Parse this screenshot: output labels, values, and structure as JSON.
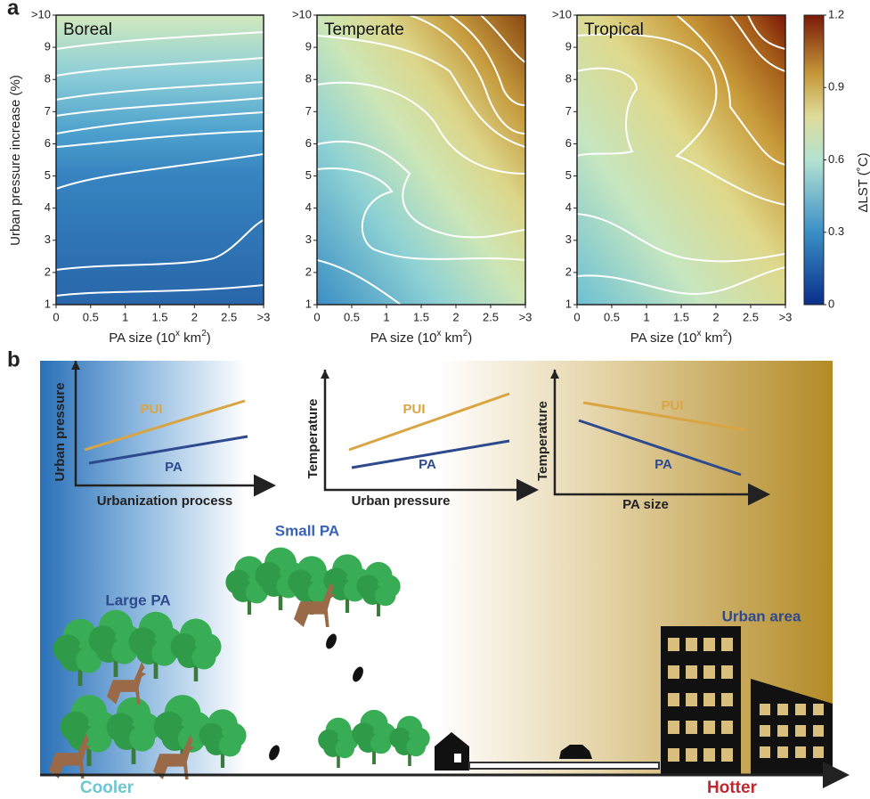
{
  "panel_a": {
    "label": "a",
    "y_label": "Urban pressure increase (%)",
    "x_label": {
      "start": "PA size (10",
      "sup1": "x",
      "mid": " km",
      "sup2": "2",
      "end": ")"
    },
    "yticks": [
      ">10",
      "9",
      "8",
      "7",
      "6",
      "5",
      "4",
      "3",
      "2",
      "1"
    ],
    "xticks": [
      "0",
      "0.5",
      "1",
      "1.5",
      "2",
      "2.5",
      ">3"
    ],
    "panels": [
      {
        "title": "Boreal"
      },
      {
        "title": "Temperate"
      },
      {
        "title": "Tropical"
      }
    ],
    "colorbar": {
      "label": "ΔLST (˚C)",
      "ticks": [
        "1.2",
        "0.9",
        "0.6",
        "0.3",
        "0"
      ]
    }
  },
  "panel_b": {
    "label": "b",
    "charts": [
      {
        "y_label": "Urban pressure",
        "x_label": "Urbanization process",
        "line1": "PUI",
        "line2": "PA"
      },
      {
        "y_label": "Temperature",
        "x_label": "Urban pressure",
        "line1": "PUI",
        "line2": "PA"
      },
      {
        "y_label": "Temperature",
        "x_label": "PA size",
        "line1": "PUI",
        "line2": "PA"
      }
    ],
    "small_pa": "Small PA",
    "large_pa": "Large PA",
    "urban_area": "Urban area",
    "cooler": "Cooler",
    "hotter": "Hotter"
  }
}
